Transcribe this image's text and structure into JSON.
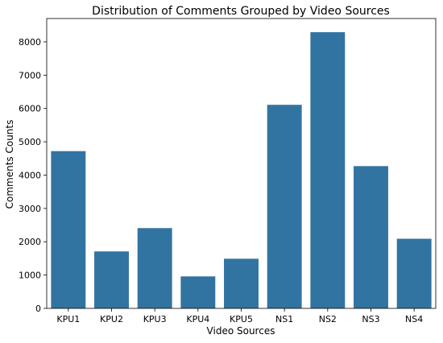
{
  "chart_data": {
    "type": "bar",
    "title": "Distribution of Comments Grouped by Video Sources",
    "xlabel": "Video Sources",
    "ylabel": "Comments Counts",
    "categories": [
      "KPU1",
      "KPU2",
      "KPU3",
      "KPU4",
      "KPU5",
      "NS1",
      "NS2",
      "NS3",
      "NS4"
    ],
    "values": [
      4720,
      1710,
      2410,
      960,
      1490,
      6110,
      8290,
      4270,
      2090
    ],
    "yticks": [
      0,
      1000,
      2000,
      3000,
      4000,
      5000,
      6000,
      7000,
      8000
    ],
    "ylim": [
      0,
      8700
    ],
    "grid": false,
    "bar_color": "#3274a1"
  }
}
